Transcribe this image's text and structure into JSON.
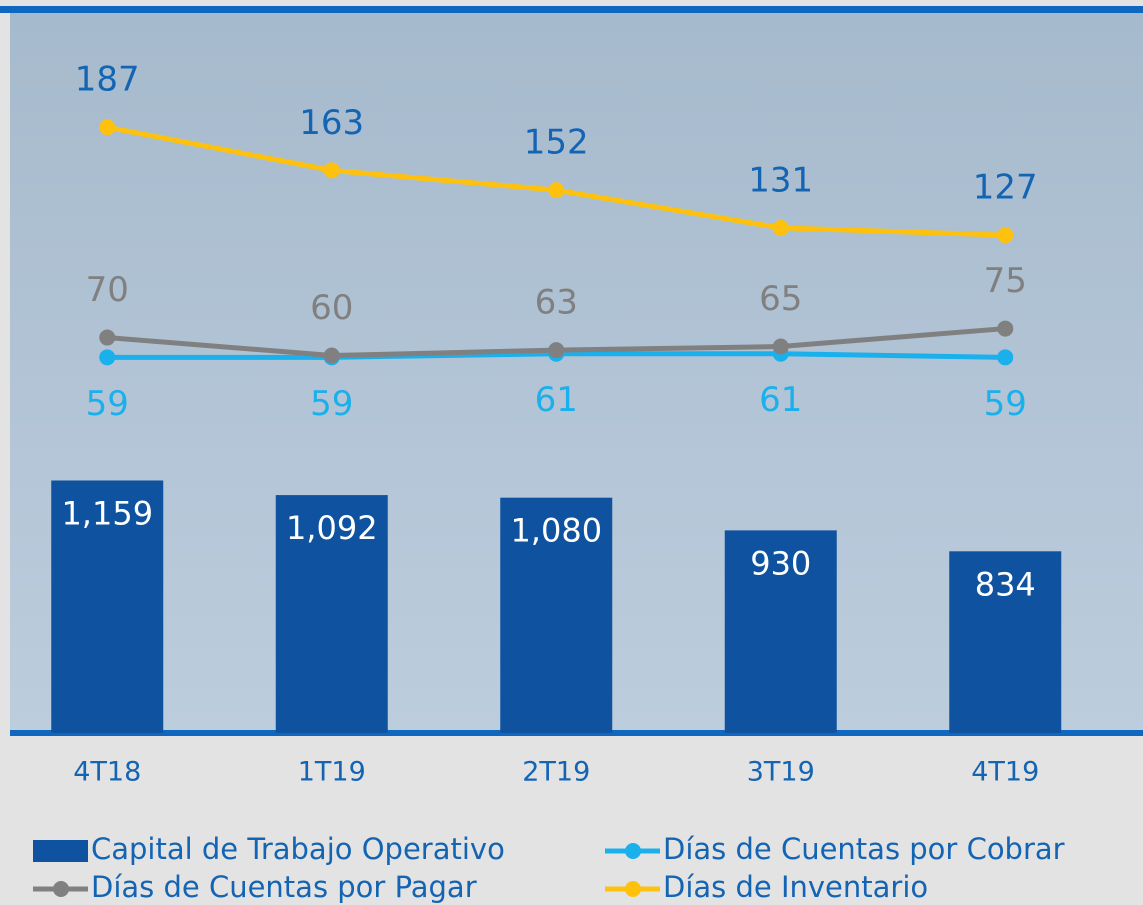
{
  "chart_data": {
    "type": "bar-line",
    "categories": [
      "4T18",
      "1T19",
      "2T19",
      "3T19",
      "4T19"
    ],
    "ylim": [
      -150,
      250
    ],
    "y2lim": [
      0,
      3300
    ],
    "series": [
      {
        "name": "Capital de Trabajo Operativo",
        "type": "bar",
        "axis": "y2",
        "color": "#0f53a0",
        "values": [
          1159,
          1092,
          1080,
          930,
          834
        ],
        "value_labels": [
          "1,159",
          "1,092",
          "1,080",
          "930",
          "834"
        ]
      },
      {
        "name": "Días de Cuentas por Cobrar",
        "type": "line",
        "color": "#1ab0ec",
        "values": [
          59,
          59,
          61,
          61,
          59
        ]
      },
      {
        "name": "Días de Cuentas por Pagar",
        "type": "line",
        "color": "#808080",
        "values": [
          70,
          60,
          63,
          65,
          75
        ]
      },
      {
        "name": "Días de Inventario",
        "type": "line",
        "color": "#fdc10e",
        "values": [
          187,
          163,
          152,
          131,
          127
        ]
      }
    ]
  }
}
